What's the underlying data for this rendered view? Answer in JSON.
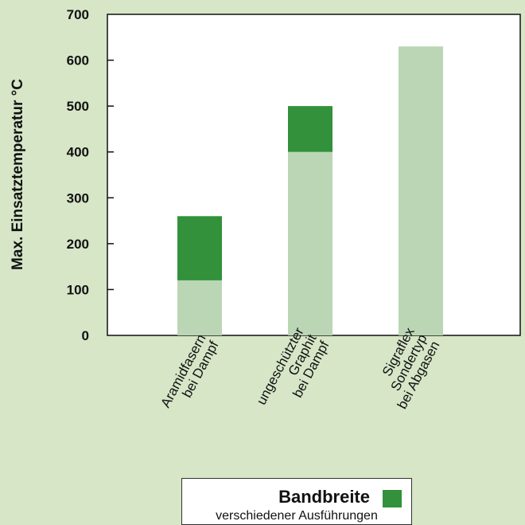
{
  "chart_data": {
    "type": "bar",
    "stacked": true,
    "categories": [
      [
        "Aramidfasern",
        "bei Dampf"
      ],
      [
        "ungeschützter",
        "Graphit",
        "bei Dampf"
      ],
      [
        "Sigraflex",
        "Sondertyp",
        "bei Abgasen"
      ]
    ],
    "series": [
      {
        "values": [
          120,
          400,
          630
        ],
        "color": "#bad6b4"
      },
      {
        "values": [
          140,
          100,
          0
        ],
        "color": "#32913a"
      }
    ],
    "ylabel": "Max. Einsatztemperatur °C",
    "ylim": [
      0,
      700
    ],
    "yticks": [
      0,
      100,
      200,
      300,
      400,
      500,
      600,
      700
    ],
    "grid": false
  },
  "legend": {
    "title": "Bandbreite",
    "subtitle": "verschiedener Ausführungen",
    "color": "#32913a"
  }
}
